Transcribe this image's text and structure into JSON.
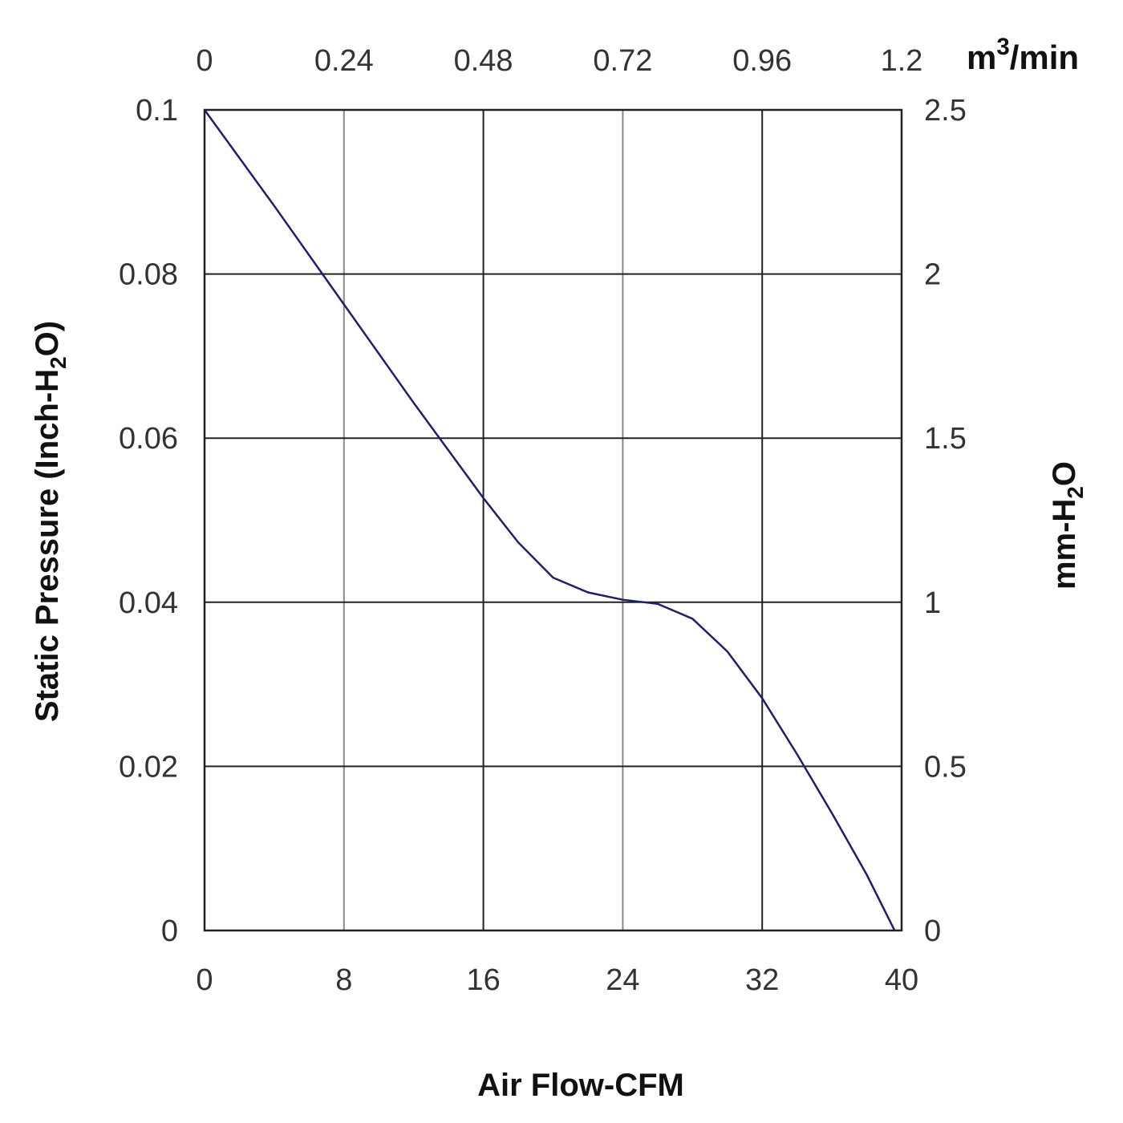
{
  "chart_data": {
    "type": "line",
    "xlabel": "Air Flow-CFM",
    "ylabel_left": {
      "main": "Static Pressure (Inch-H",
      "sub": "2",
      "tail": "O)"
    },
    "ylabel_right": {
      "main": "mm-H",
      "sub": "2",
      "tail": "O"
    },
    "top_axis_unit": {
      "main": "m",
      "sup": "3",
      "tail": "/min"
    },
    "xlim": [
      0,
      40
    ],
    "ylim": [
      0,
      0.1
    ],
    "x_ticks": [
      "0",
      "8",
      "16",
      "24",
      "32",
      "40"
    ],
    "x_tick_values": [
      0,
      8,
      16,
      24,
      32,
      40
    ],
    "x_top_ticks": [
      "0",
      "0.24",
      "0.48",
      "0.72",
      "0.96",
      "1.2"
    ],
    "y_left_ticks": [
      "0",
      "0.02",
      "0.04",
      "0.06",
      "0.08",
      "0.1"
    ],
    "y_left_tick_values": [
      0,
      0.02,
      0.04,
      0.06,
      0.08,
      0.1
    ],
    "y_right_ticks": [
      "0",
      "0.5",
      "1",
      "1.5",
      "2",
      "2.5"
    ],
    "grid": true,
    "series": [
      {
        "color": "#1f1f66",
        "x": [
          0,
          4,
          8,
          12,
          16,
          18,
          20,
          22,
          24,
          26,
          28,
          30,
          32,
          34,
          36,
          38,
          39.6
        ],
        "y": [
          0.1,
          0.0883,
          0.0763,
          0.0643,
          0.0527,
          0.0473,
          0.043,
          0.0412,
          0.0403,
          0.0398,
          0.038,
          0.034,
          0.0283,
          0.0215,
          0.0143,
          0.0068,
          0.0
        ]
      }
    ]
  }
}
